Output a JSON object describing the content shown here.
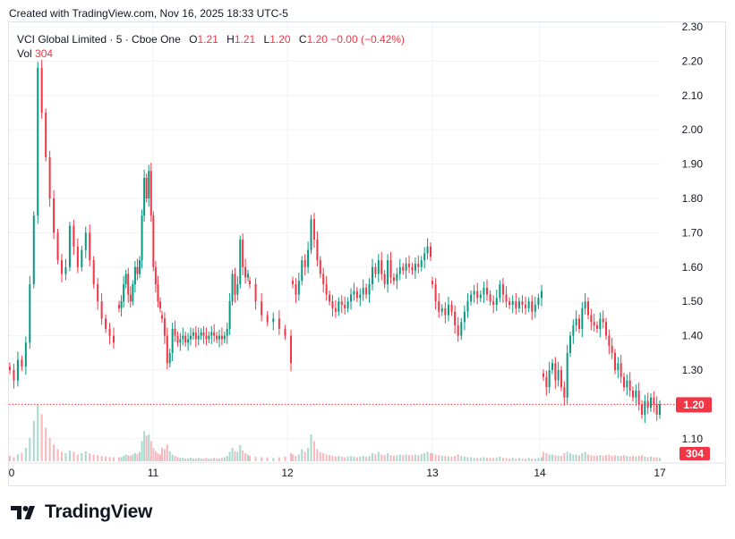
{
  "header": {
    "created_text": "Created with TradingView.com, Nov 16, 2025 18:33 UTC-5"
  },
  "legend": {
    "symbol": "VCI Global Limited · 5 · Cboe One",
    "open_key": "O",
    "open_value": "1.21",
    "high_key": "H",
    "high_value": "1.21",
    "low_key": "L",
    "low_value": "1.20",
    "close_key": "C",
    "close_value": "1.20",
    "change": "−0.00 (−0.42%)",
    "volume_key": "Vol",
    "volume_value": "304"
  },
  "footer": {
    "brand": "TradingView"
  },
  "colors": {
    "up": "#089981",
    "down": "#f23645",
    "up_volume": "#a8d9cf",
    "down_volume": "#f8b7bb",
    "grid": "#f0f3fa",
    "price_line": "#f23645"
  },
  "chart_data": {
    "type": "candlestick",
    "title": "",
    "x_ticks": [
      "0",
      "11",
      "12",
      "13",
      "14",
      "17"
    ],
    "y_ticks": [
      "2.30",
      "2.20",
      "2.10",
      "2.00",
      "1.90",
      "1.80",
      "1.70",
      "1.60",
      "1.50",
      "1.40",
      "1.30",
      "1.10"
    ],
    "ylim": [
      1.05,
      2.3
    ],
    "current_price": 1.2,
    "current_price_label": "1.20",
    "current_volume": 304,
    "current_volume_label": "304",
    "grid": true,
    "series": [
      {
        "day": "0",
        "path": [
          1.3,
          1.27,
          1.33,
          1.31,
          1.38,
          1.55,
          1.75,
          2.18,
          2.05,
          1.92,
          1.8,
          1.7,
          1.62,
          1.58,
          1.6,
          1.72,
          1.66,
          1.6,
          1.65,
          1.7,
          1.62,
          1.55,
          1.5,
          1.45,
          1.42,
          1.4,
          1.38
        ],
        "volume": [
          8,
          6,
          10,
          12,
          20,
          35,
          60,
          85,
          70,
          50,
          35,
          25,
          18,
          14,
          12,
          16,
          14,
          10,
          12,
          15,
          12,
          10,
          9,
          8,
          7,
          6,
          6
        ]
      },
      {
        "day": "10b",
        "path": [
          1.48,
          1.5,
          1.55,
          1.58,
          1.52,
          1.5,
          1.55,
          1.6,
          1.58,
          1.62,
          1.75,
          1.86,
          1.8,
          1.88,
          1.75,
          1.6,
          1.55,
          1.5,
          1.48
        ],
        "volume": [
          6,
          6,
          8,
          10,
          9,
          8,
          10,
          12,
          11,
          14,
          30,
          45,
          38,
          40,
          30,
          20,
          15,
          12,
          10
        ]
      },
      {
        "day": "11",
        "path": [
          1.45,
          1.4,
          1.32,
          1.35,
          1.42,
          1.4,
          1.38,
          1.39,
          1.4,
          1.38,
          1.39,
          1.4,
          1.41,
          1.39,
          1.4,
          1.41,
          1.4,
          1.39,
          1.4,
          1.41,
          1.4,
          1.39,
          1.4,
          1.39,
          1.4,
          1.42,
          1.5,
          1.58,
          1.52,
          1.55,
          1.68,
          1.6,
          1.57,
          1.58
        ],
        "volume": [
          20,
          18,
          25,
          15,
          10,
          8,
          6,
          5,
          5,
          4,
          4,
          5,
          4,
          4,
          5,
          4,
          4,
          5,
          4,
          4,
          5,
          4,
          4,
          5,
          6,
          8,
          14,
          20,
          15,
          14,
          24,
          16,
          12,
          10
        ]
      },
      {
        "day": "11b",
        "path": [
          1.55,
          1.5,
          1.46,
          1.44,
          1.45,
          1.42,
          1.4,
          1.32
        ],
        "volume": [
          8,
          7,
          6,
          6,
          5,
          6,
          7,
          12
        ]
      },
      {
        "day": "12",
        "path": [
          1.55,
          1.52,
          1.56,
          1.62,
          1.6,
          1.65,
          1.74,
          1.68,
          1.62,
          1.58,
          1.55,
          1.52,
          1.5,
          1.48,
          1.47,
          1.5,
          1.49,
          1.48,
          1.5,
          1.52,
          1.53,
          1.51,
          1.52,
          1.54,
          1.52,
          1.55,
          1.6,
          1.58,
          1.62,
          1.58,
          1.55,
          1.62,
          1.57,
          1.56,
          1.58,
          1.6,
          1.59,
          1.61,
          1.6,
          1.59,
          1.61,
          1.6,
          1.62,
          1.64,
          1.66,
          1.63
        ],
        "volume": [
          10,
          8,
          10,
          18,
          14,
          20,
          40,
          30,
          18,
          14,
          12,
          10,
          9,
          8,
          7,
          8,
          7,
          6,
          7,
          8,
          7,
          6,
          7,
          8,
          7,
          8,
          12,
          10,
          14,
          10,
          9,
          12,
          9,
          8,
          9,
          10,
          9,
          10,
          9,
          9,
          10,
          9,
          11,
          12,
          14,
          12
        ]
      },
      {
        "day": "13",
        "path": [
          1.55,
          1.5,
          1.47,
          1.48,
          1.46,
          1.49,
          1.47,
          1.43,
          1.4,
          1.44,
          1.47,
          1.5,
          1.52,
          1.53,
          1.51,
          1.52,
          1.54,
          1.52,
          1.5,
          1.49,
          1.51,
          1.55,
          1.52,
          1.5,
          1.49,
          1.5,
          1.48,
          1.5,
          1.49,
          1.48,
          1.5,
          1.47,
          1.49,
          1.51,
          1.53
        ],
        "volume": [
          12,
          10,
          9,
          8,
          8,
          7,
          7,
          8,
          10,
          8,
          7,
          6,
          6,
          5,
          5,
          5,
          6,
          5,
          5,
          5,
          5,
          7,
          5,
          5,
          4,
          5,
          4,
          5,
          4,
          4,
          5,
          4,
          4,
          5,
          6
        ]
      },
      {
        "day": "14",
        "path": [
          1.28,
          1.25,
          1.3,
          1.32,
          1.27,
          1.3,
          1.25,
          1.22,
          1.35,
          1.4,
          1.43,
          1.45,
          1.42,
          1.48,
          1.5,
          1.46,
          1.44,
          1.43,
          1.42,
          1.45,
          1.44,
          1.4,
          1.37,
          1.35,
          1.3,
          1.32,
          1.28,
          1.25,
          1.27,
          1.24,
          1.22,
          1.24,
          1.2,
          1.17,
          1.21,
          1.19,
          1.22,
          1.2,
          1.17,
          1.2
        ],
        "volume": [
          14,
          12,
          10,
          10,
          9,
          8,
          8,
          12,
          14,
          12,
          10,
          10,
          9,
          12,
          14,
          10,
          9,
          8,
          8,
          9,
          8,
          9,
          10,
          8,
          9,
          8,
          8,
          9,
          8,
          7,
          8,
          7,
          8,
          9,
          7,
          6,
          7,
          6,
          6,
          5
        ]
      }
    ]
  }
}
